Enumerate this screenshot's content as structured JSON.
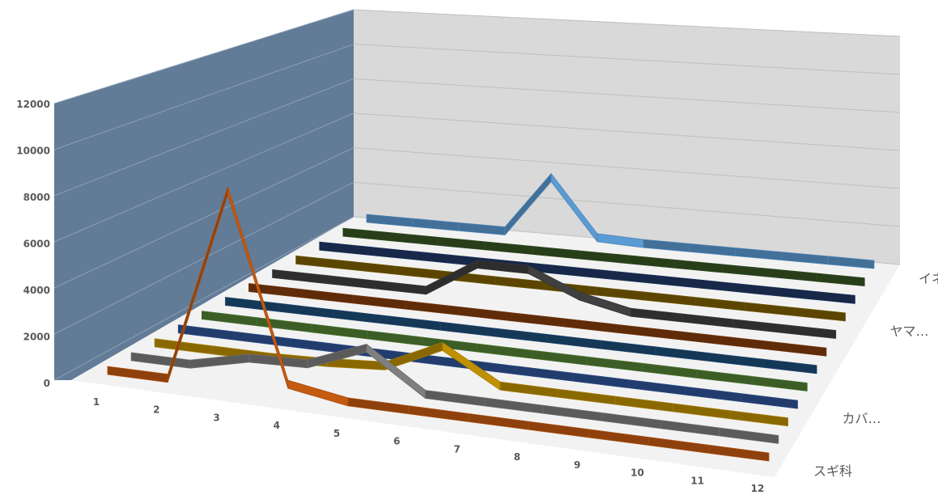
{
  "chart_data": {
    "type": "line",
    "style": "3d-line",
    "categories": [
      "1",
      "2",
      "3",
      "4",
      "5",
      "6",
      "7",
      "8",
      "9",
      "10",
      "11",
      "12"
    ],
    "ylim": [
      0,
      12000
    ],
    "yticks": [
      0,
      2000,
      4000,
      6000,
      8000,
      10000,
      12000
    ],
    "depth_axis_labels": [
      "スギ科",
      "カバ…",
      "ヤマ…",
      "イネ科"
    ],
    "grid": true,
    "legend": "none",
    "wall_colors": {
      "left": "#627b96",
      "back": "#d9d9d9"
    },
    "series": [
      {
        "color": "#c55a11",
        "values": [
          0,
          0,
          10000,
          500,
          0,
          0,
          0,
          0,
          0,
          0,
          0,
          0
        ]
      },
      {
        "color": "#7f7f7f",
        "values": [
          0,
          0,
          700,
          800,
          2000,
          0,
          0,
          0,
          0,
          0,
          0,
          0
        ]
      },
      {
        "color": "#bf9000",
        "values": [
          0,
          0,
          0,
          100,
          300,
          1700,
          0,
          0,
          0,
          0,
          0,
          0
        ]
      },
      {
        "color": "#2f5597",
        "values": [
          0,
          0,
          0,
          0,
          0,
          0,
          0,
          0,
          0,
          0,
          0,
          0
        ]
      },
      {
        "color": "#548235",
        "values": [
          0,
          0,
          0,
          0,
          0,
          0,
          0,
          0,
          0,
          0,
          0,
          0
        ]
      },
      {
        "color": "#1f4e79",
        "values": [
          0,
          0,
          0,
          0,
          0,
          0,
          0,
          0,
          0,
          0,
          0,
          0
        ]
      },
      {
        "color": "#843c0c",
        "values": [
          0,
          0,
          0,
          0,
          0,
          0,
          0,
          0,
          0,
          0,
          0,
          0
        ]
      },
      {
        "color": "#404040",
        "values": [
          0,
          0,
          0,
          0,
          1800,
          1800,
          600,
          0,
          0,
          0,
          0,
          0
        ]
      },
      {
        "color": "#7f6000",
        "values": [
          0,
          0,
          0,
          0,
          0,
          0,
          0,
          0,
          0,
          0,
          0,
          0
        ]
      },
      {
        "color": "#203864",
        "values": [
          0,
          0,
          0,
          0,
          0,
          0,
          0,
          0,
          0,
          0,
          0,
          0
        ]
      },
      {
        "color": "#375623",
        "values": [
          0,
          0,
          0,
          0,
          0,
          0,
          0,
          0,
          0,
          0,
          0,
          0
        ]
      },
      {
        "color": "#5b9bd5",
        "values": [
          0,
          0,
          0,
          0,
          3500,
          100,
          0,
          0,
          0,
          0,
          0,
          0
        ]
      }
    ]
  }
}
